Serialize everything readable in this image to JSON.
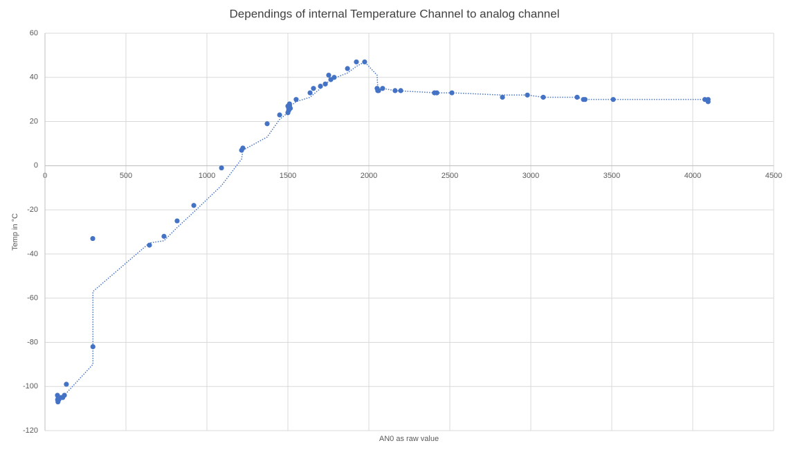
{
  "chart_data": {
    "type": "scatter",
    "title": "Dependings of internal Temperature Channel to analog channel",
    "x_label": "AN0 as raw value",
    "y_label": "Temp in °C",
    "xlim": [
      0,
      4500
    ],
    "xticks": [
      0,
      500,
      1000,
      1500,
      2000,
      2500,
      3000,
      3500,
      4000,
      4500
    ],
    "ylim": [
      -120,
      60
    ],
    "yticks": [
      -120,
      -100,
      -80,
      -60,
      -40,
      -20,
      0,
      20,
      40,
      60
    ],
    "grid": true,
    "series": [
      {
        "color": "#4472c4",
        "style": "markers",
        "x": [
          77,
          78,
          80,
          82,
          85,
          100,
          110,
          120,
          132,
          295,
          296,
          645,
          735,
          816,
          919,
          1090,
          1214,
          1222,
          1372,
          1449,
          1500,
          1505,
          1505,
          1510,
          1510,
          1515,
          1500,
          1551,
          1637,
          1658,
          1701,
          1731,
          1752,
          1765,
          1786,
          1868,
          1923,
          1974,
          2051,
          2055,
          2060,
          2085,
          2162,
          2197,
          2405,
          2420,
          2513,
          2825,
          2979,
          3077,
          3286,
          3325,
          3335,
          3509,
          4075,
          4095,
          4095
        ],
        "values": [
          -104,
          -106,
          -107,
          -105,
          -106,
          -105,
          -105,
          -104,
          -99,
          -33,
          -82,
          -36,
          -32,
          -25,
          -18,
          -1,
          7,
          8,
          19,
          23,
          24,
          25,
          26,
          27,
          28,
          26,
          27,
          30,
          33,
          35,
          36,
          37,
          41,
          39,
          40,
          44,
          47,
          47,
          35,
          34,
          34,
          35,
          34,
          34,
          33,
          33,
          33,
          31,
          32,
          31,
          31,
          30,
          30,
          30,
          30,
          29,
          30
        ]
      },
      {
        "color": "#4472c4",
        "style": "dotted",
        "x": [
          77,
          132,
          296,
          296,
          645,
          735,
          816,
          919,
          1090,
          1214,
          1222,
          1372,
          1449,
          1500,
          1515,
          1551,
          1637,
          1701,
          1765,
          1868,
          1923,
          1974,
          2051,
          2055,
          2085,
          2162,
          2420,
          2513,
          2825,
          2979,
          3077,
          3286,
          3335,
          3509,
          4095
        ],
        "values": [
          -106,
          -103,
          -90,
          -57,
          -35,
          -34,
          -28,
          -21,
          -9,
          3,
          7,
          13,
          21,
          24,
          27,
          29,
          31,
          35,
          39,
          42,
          45,
          47,
          41,
          35,
          35,
          34,
          33,
          33,
          32,
          32,
          31,
          31,
          30,
          30,
          30
        ]
      }
    ]
  }
}
